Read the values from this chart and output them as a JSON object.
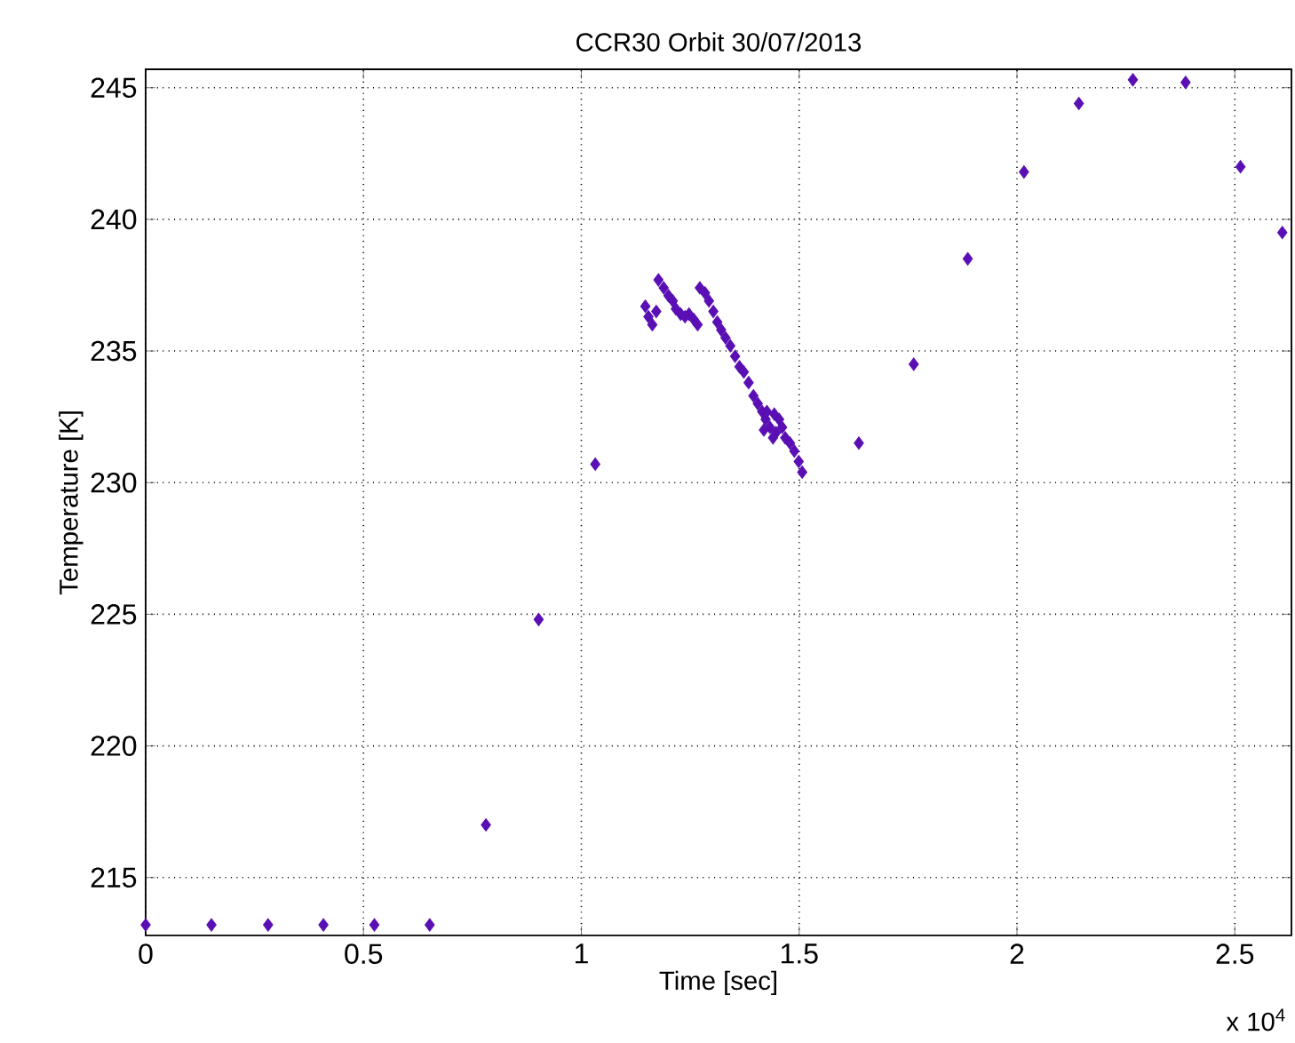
{
  "chart_data": {
    "type": "scatter",
    "title": "CCR30 Orbit 30/07/2013",
    "xlabel": "Time [sec]",
    "ylabel": "Temperature [K]",
    "annotations": [
      "x 10$^{4}$"
    ],
    "series": [
      {
        "color": "#5a0fb4",
        "marker": "diamond",
        "x": [
          0,
          0.151,
          0.281,
          0.408,
          0.525,
          0.652,
          0.781,
          0.902,
          1.032,
          1.147,
          1.154,
          1.163,
          1.172,
          1.177,
          1.189,
          1.2,
          1.21,
          1.217,
          1.228,
          1.238,
          1.247,
          1.258,
          1.267,
          1.272,
          1.284,
          1.293,
          1.303,
          1.312,
          1.321,
          1.331,
          1.342,
          1.353,
          1.363,
          1.373,
          1.384,
          1.395,
          1.405,
          1.415,
          1.419,
          1.423,
          1.426,
          1.433,
          1.44,
          1.443,
          1.447,
          1.454,
          1.461,
          1.468,
          1.479,
          1.489,
          1.499,
          1.507,
          1.637,
          1.763,
          1.887,
          2.016,
          2.142,
          2.266,
          2.387,
          2.513,
          2.609
        ],
        "values": [
          213.2,
          213.2,
          213.2,
          213.2,
          213.2,
          213.2,
          217.0,
          224.8,
          230.7,
          236.7,
          236.3,
          236.0,
          236.5,
          237.7,
          237.4,
          237.1,
          236.9,
          236.6,
          236.4,
          236.3,
          236.4,
          236.2,
          236.0,
          237.4,
          237.2,
          236.9,
          236.5,
          236.1,
          235.8,
          235.5,
          235.2,
          234.8,
          234.4,
          234.2,
          233.8,
          233.3,
          233.0,
          232.7,
          232.0,
          232.4,
          232.7,
          232.1,
          231.7,
          232.6,
          231.9,
          232.4,
          232.1,
          231.7,
          231.5,
          231.2,
          230.8,
          230.4,
          231.5,
          234.5,
          238.5,
          241.8,
          244.4,
          245.3,
          245.2,
          242.0,
          239.5
        ]
      }
    ],
    "xlim": [
      0,
      2.63
    ],
    "ylim": [
      212.8,
      245.7
    ],
    "xticks": [
      0,
      0.5,
      1,
      1.5,
      2,
      2.5
    ],
    "yticks": [
      215,
      220,
      225,
      230,
      235,
      240,
      245
    ],
    "grid": true
  }
}
